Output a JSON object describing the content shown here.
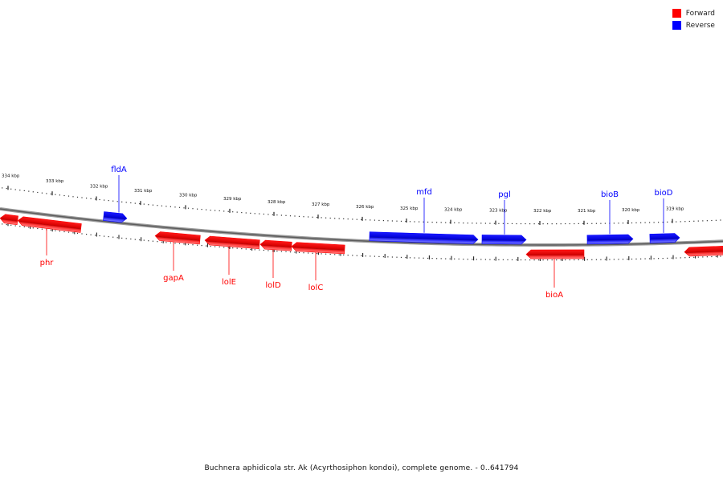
{
  "legend": {
    "forward_label": "Forward",
    "reverse_label": "Reverse",
    "forward_color": "#ff0000",
    "reverse_color": "#0000ff"
  },
  "caption": "Buchnera aphidicola str. Ak (Acyrthosiphon kondoi), complete genome. - 0..641794",
  "ruler": {
    "ticks": [
      {
        "label": "334 kbp"
      },
      {
        "label": "333 kbp"
      },
      {
        "label": "332 kbp"
      },
      {
        "label": "331 kbp"
      },
      {
        "label": "330 kbp"
      },
      {
        "label": "329 kbp"
      },
      {
        "label": "328 kbp"
      },
      {
        "label": "327 kbp"
      },
      {
        "label": "326 kbp"
      },
      {
        "label": "325 kbp"
      },
      {
        "label": "324 kbp"
      },
      {
        "label": "323 kbp"
      },
      {
        "label": "322 kbp"
      },
      {
        "label": "321 kbp"
      },
      {
        "label": "320 kbp"
      },
      {
        "label": "319 kbp"
      }
    ]
  },
  "genes": {
    "forward": [
      {
        "label": ""
      },
      {
        "label": "phr"
      },
      {
        "label": "gapA"
      },
      {
        "label": "lolE"
      },
      {
        "label": "lolD"
      },
      {
        "label": "lolC"
      },
      {
        "label": "bioA"
      },
      {
        "label": ""
      }
    ],
    "reverse": [
      {
        "label": "fldA"
      },
      {
        "label": "mfd"
      },
      {
        "label": "pgl"
      },
      {
        "label": "bioB"
      },
      {
        "label": "bioD"
      }
    ]
  }
}
